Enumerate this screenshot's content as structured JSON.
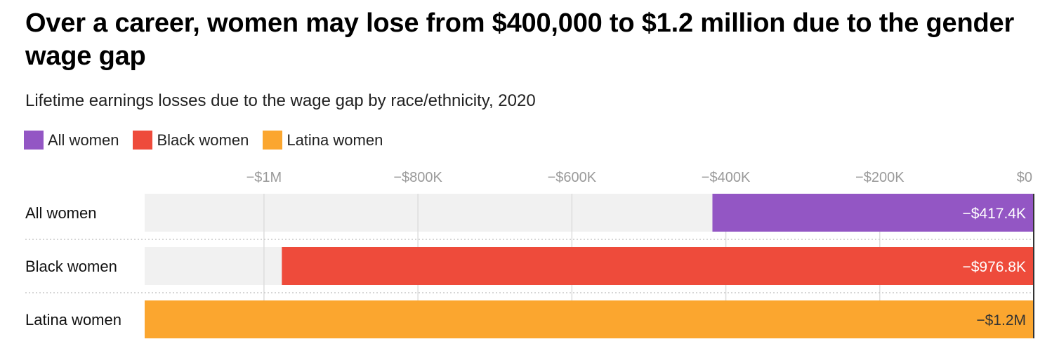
{
  "chart_data": {
    "type": "bar",
    "orientation": "horizontal",
    "title": "Over a career, women may lose from $400,000 to $1.2 million due to the gender wage gap",
    "subtitle": "Lifetime earnings losses due to the wage gap by race/ethnicity, 2020",
    "categories": [
      "All women",
      "Black women",
      "Latina women"
    ],
    "values": [
      -417400,
      -976800,
      -1155000
    ],
    "value_labels": [
      "−$417.4K",
      "−$976.8K",
      "−$1.2M"
    ],
    "colors": [
      "#9356c4",
      "#ee4b3b",
      "#fba62f"
    ],
    "value_label_colors": [
      "#ffffff",
      "#ffffff",
      "#333333"
    ],
    "legend": {
      "placement": "top-left",
      "entries": [
        {
          "label": "All women",
          "color": "#9356c4"
        },
        {
          "label": "Black women",
          "color": "#ee4b3b"
        },
        {
          "label": "Latina women",
          "color": "#fba62f"
        }
      ]
    },
    "xlim": [
      -1155000,
      0
    ],
    "x_ticks": [
      -1000000,
      -800000,
      -600000,
      -400000,
      -200000,
      0
    ],
    "x_tick_labels": [
      "−$1M",
      "−$800K",
      "−$600K",
      "−$400K",
      "−$200K",
      "$0"
    ],
    "x_axis_position": "top",
    "grid": true,
    "background_track_color": "#f1f1f1"
  }
}
